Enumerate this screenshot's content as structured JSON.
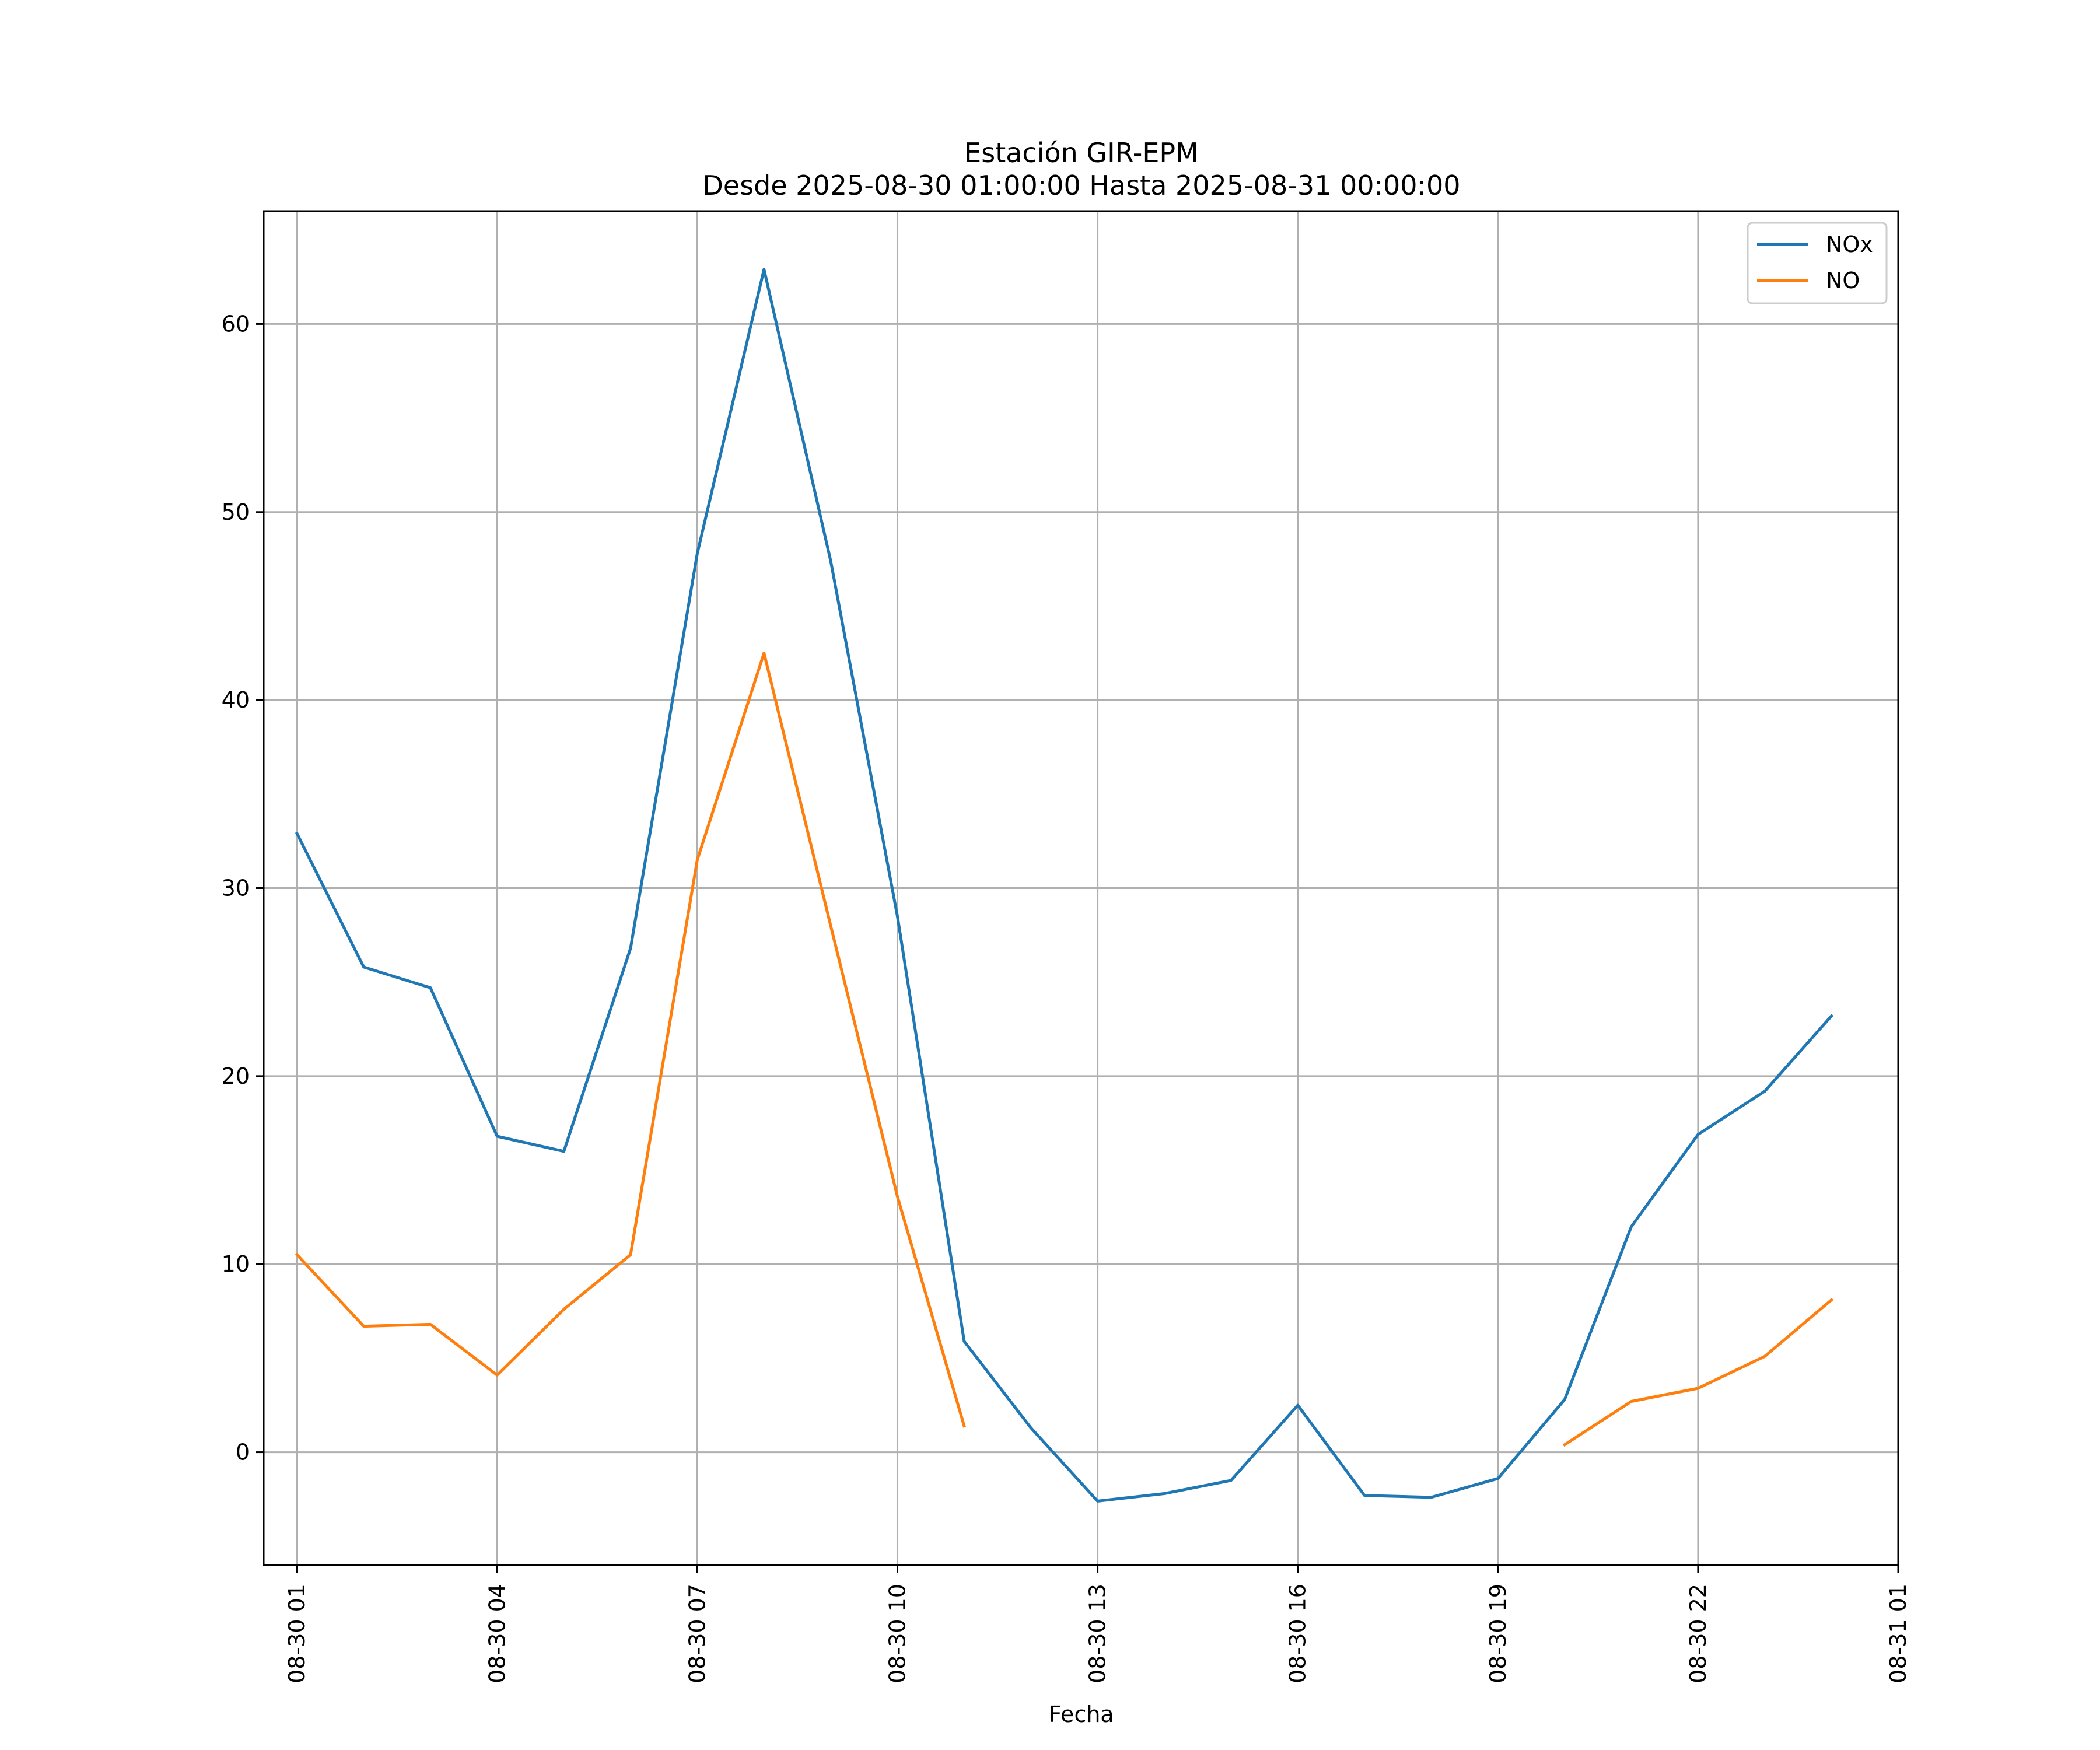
{
  "chart_data": {
    "type": "line",
    "title": "Estación GIR-EPM",
    "subtitle": "Desde 2025-08-30 01:00:00 Hasta 2025-08-31 00:00:00",
    "xlabel": "Fecha",
    "ylabel": "",
    "ylim": [
      -6,
      66
    ],
    "yticks": [
      0,
      10,
      20,
      30,
      40,
      50,
      60
    ],
    "xlim": [
      "2025-08-30 00:30",
      "2025-08-31 01:00"
    ],
    "xticks": [
      {
        "t": "2025-08-30 01:00",
        "label": "08-30 01"
      },
      {
        "t": "2025-08-30 04:00",
        "label": "08-30 04"
      },
      {
        "t": "2025-08-30 07:00",
        "label": "08-30 07"
      },
      {
        "t": "2025-08-30 10:00",
        "label": "08-30 10"
      },
      {
        "t": "2025-08-30 13:00",
        "label": "08-30 13"
      },
      {
        "t": "2025-08-30 16:00",
        "label": "08-30 16"
      },
      {
        "t": "2025-08-30 19:00",
        "label": "08-30 19"
      },
      {
        "t": "2025-08-30 22:00",
        "label": "08-30 22"
      },
      {
        "t": "2025-08-31 01:00",
        "label": "08-31 01"
      }
    ],
    "x": [
      "2025-08-30 01:00",
      "2025-08-30 02:00",
      "2025-08-30 03:00",
      "2025-08-30 04:00",
      "2025-08-30 05:00",
      "2025-08-30 06:00",
      "2025-08-30 07:00",
      "2025-08-30 08:00",
      "2025-08-30 09:00",
      "2025-08-30 10:00",
      "2025-08-30 11:00",
      "2025-08-30 12:00",
      "2025-08-30 13:00",
      "2025-08-30 14:00",
      "2025-08-30 15:00",
      "2025-08-30 16:00",
      "2025-08-30 17:00",
      "2025-08-30 18:00",
      "2025-08-30 19:00",
      "2025-08-30 20:00",
      "2025-08-30 21:00",
      "2025-08-30 22:00",
      "2025-08-30 23:00",
      "2025-08-31 00:00"
    ],
    "series": [
      {
        "name": "NOx",
        "color": "#1f77b4",
        "values": [
          32.9,
          25.8,
          24.7,
          16.8,
          16.0,
          26.8,
          47.8,
          62.9,
          47.4,
          28.5,
          5.9,
          1.3,
          -2.6,
          -2.2,
          -1.5,
          2.5,
          -2.3,
          -2.4,
          -1.4,
          2.8,
          12.0,
          16.9,
          19.2,
          23.2
        ]
      },
      {
        "name": "NO",
        "color": "#ff7f0e",
        "values": [
          10.5,
          6.7,
          6.8,
          4.1,
          7.6,
          10.5,
          31.5,
          42.5,
          28.0,
          13.6,
          1.4,
          null,
          null,
          null,
          null,
          null,
          null,
          null,
          null,
          0.4,
          2.7,
          3.4,
          5.1,
          8.1
        ]
      }
    ],
    "grid": true,
    "legend_position": "upper right"
  }
}
